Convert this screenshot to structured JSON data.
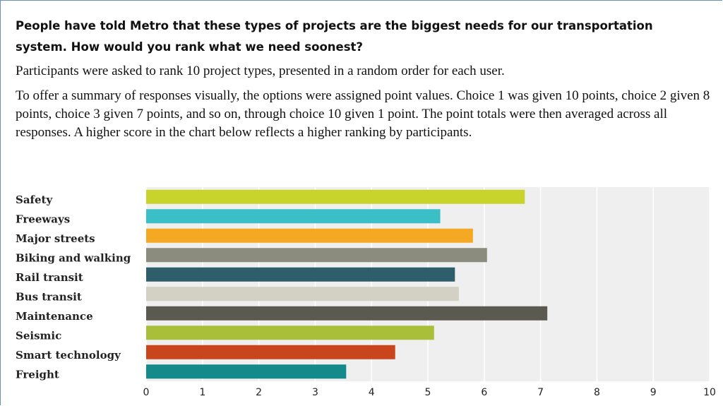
{
  "header": {
    "question": "People have told Metro that these types of projects are the biggest needs for our transportation system. How would you rank what we need soonest?",
    "paragraphs": [
      "Participants were asked to rank 10 project types, presented in a random order for each user.",
      "To offer a summary of responses visually, the options were assigned point values. Choice 1 was given 10 points, choice 2 given 8 points, choice 3 given 7 points, and so on, through choice 10 given 1 point. The point totals were then averaged across all responses. A higher score in the chart below reflects a higher ranking by participants."
    ]
  },
  "chart_data": {
    "type": "hbar",
    "categories": [
      "Safety",
      "Freeways",
      "Major streets",
      "Biking and walking",
      "Rail transit",
      "Bus transit",
      "Maintenance",
      "Seismic",
      "Smart technology",
      "Freight"
    ],
    "values": [
      6.72,
      5.22,
      5.8,
      6.05,
      5.48,
      5.55,
      7.12,
      5.11,
      4.42,
      3.55
    ],
    "colors": [
      "#c8d42b",
      "#3bbfc6",
      "#f5a823",
      "#8b8b7e",
      "#2e5d6b",
      "#d3d0c4",
      "#5a5a50",
      "#a9bf3a",
      "#c9451e",
      "#158a8a"
    ],
    "xlim": [
      0,
      10
    ],
    "xticks": [
      0,
      1,
      2,
      3,
      4,
      5,
      6,
      7,
      8,
      9,
      10
    ],
    "grid": true
  }
}
